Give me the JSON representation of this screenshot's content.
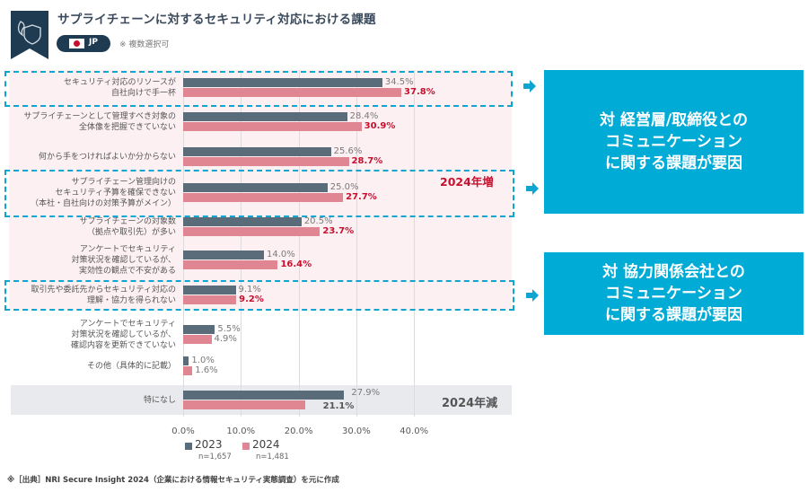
{
  "header": {
    "title": "サプライチェーンに対するセキュリティ対応における課題",
    "logo_icon": "flame-shield-icon",
    "region_badge": {
      "flag_icon": "japan-flag-icon",
      "label": "JP"
    },
    "note": "※ 複数選択可"
  },
  "colors": {
    "series_2023": "#5a6b7a",
    "series_2024": "#e08592",
    "highlight_value": "#c8102e",
    "accent_blue": "#00abd6",
    "pink_band": "#fcf0f2",
    "gray_band": "#e8eaed"
  },
  "chart_data": {
    "type": "bar",
    "orientation": "horizontal",
    "title": "サプライチェーンに対するセキュリティ対応における課題",
    "xlabel": "",
    "ylabel": "",
    "xlim": [
      0,
      40
    ],
    "x_ticks": [
      "0.0%",
      "10.0%",
      "20.0%",
      "30.0%",
      "40.0%"
    ],
    "grid": true,
    "legend_position": "bottom-left",
    "categories": [
      [
        "セキュリティ対応のリソースが",
        "自社向けで手一杯"
      ],
      [
        "サプライチェーンとして管理すべき対象の",
        "全体像を把握できていない"
      ],
      [
        "何から手をつければよいか分からない"
      ],
      [
        "サプライチェーン管理向けの",
        "セキュリティ予算を確保できない",
        "（本社・自社向けの対策予算がメイン）"
      ],
      [
        "サプライチェーンの対象数",
        "（拠点や取引先）が多い"
      ],
      [
        "アンケートでセキュリティ",
        "対策状況を確認しているが、",
        "実効性の観点で不安がある"
      ],
      [
        "取引先や委託先からセキュリティ対応の",
        "理解・協力を得られない"
      ],
      [
        "アンケートでセキュリティ",
        "対策状況を確認しているが、",
        "確認内容を更新できていない"
      ],
      [
        "その他（具体的に記載）"
      ],
      [
        "特になし"
      ]
    ],
    "series": [
      {
        "name": "2023",
        "n": "n=1,657",
        "values": [
          34.5,
          28.4,
          25.6,
          25.0,
          20.5,
          14.0,
          9.1,
          5.5,
          1.0,
          27.9
        ],
        "labels": [
          "34.5%",
          "28.4%",
          "25.6%",
          "25.0%",
          "20.5%",
          "14.0%",
          "9.1%",
          "5.5%",
          "1.0%",
          "27.9%"
        ]
      },
      {
        "name": "2024",
        "n": "n=1,481",
        "values": [
          37.8,
          30.9,
          28.7,
          27.7,
          23.7,
          16.4,
          9.2,
          4.9,
          1.6,
          21.1
        ],
        "labels": [
          "37.8%",
          "30.9%",
          "28.7%",
          "27.7%",
          "23.7%",
          "16.4%",
          "9.2%",
          "4.9%",
          "1.6%",
          "21.1%"
        ]
      }
    ],
    "annotations": {
      "increase_tag": "2024年増",
      "decrease_tag": "2024年減"
    }
  },
  "callouts": [
    {
      "lines": [
        "対 経営層/取締役との",
        "コミュニケーション",
        "に関する課題が要因"
      ]
    },
    {
      "lines": [
        "対 協力関係会社との",
        "コミュニケーション",
        "に関する課題が要因"
      ]
    }
  ],
  "footnote": "※［出典］NRI Secure Insight 2024（企業における情報セキュリティ実態調査）を元に作成"
}
